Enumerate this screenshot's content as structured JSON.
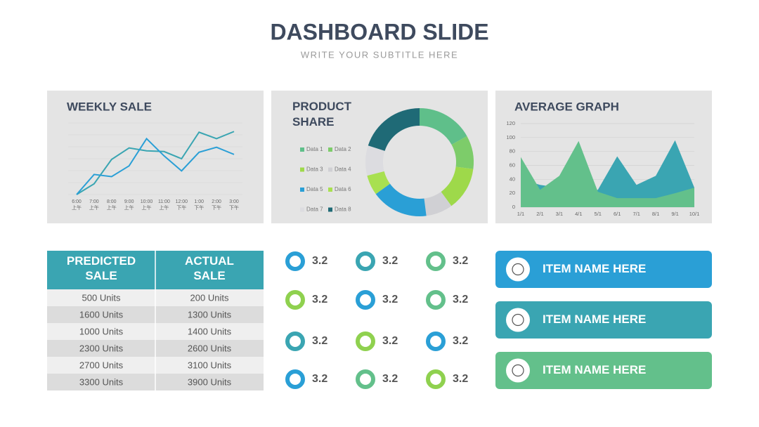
{
  "title": "DASHBOARD SLIDE",
  "subtitle": "WRITE YOUR SUBTITLE HERE",
  "chart_data": [
    {
      "type": "line",
      "title": "WEEKLY SALE",
      "categories": [
        "6:00 上午",
        "7:00 上午",
        "8:00 上午",
        "9:00 上午",
        "10:00 上午",
        "11:00 上午",
        "12:00 下午",
        "1:00 下午",
        "2:00 下午",
        "3:00 下午"
      ],
      "ylim": [
        0,
        100
      ],
      "series": [
        {
          "color": "#3aa5b2",
          "values": [
            0,
            15,
            49,
            65,
            61,
            60,
            50,
            87,
            78,
            88
          ]
        },
        {
          "color": "#2a9fd6",
          "values": [
            0,
            28,
            25,
            40,
            78,
            54,
            33,
            59,
            66,
            56
          ]
        }
      ]
    },
    {
      "type": "pie",
      "title": "PRODUCT SHARE",
      "donut": true,
      "categories": [
        "Data 1",
        "Data 2",
        "Data 3",
        "Data 4",
        "Data 5",
        "Data 6",
        "Data 7",
        "Data 8"
      ],
      "values": [
        17,
        10,
        13,
        8,
        17,
        6,
        9,
        20
      ],
      "colors": [
        "#5fbf8a",
        "#7dcc6a",
        "#9ed94a",
        "#d0d0d4",
        "#2a9fd6",
        "#a8e050",
        "#dcdce0",
        "#1f6a76"
      ]
    },
    {
      "type": "area",
      "title": "AVERAGE GRAPH",
      "categories": [
        "1/1",
        "2/1",
        "3/1",
        "4/1",
        "5/1",
        "6/1",
        "7/1",
        "8/1",
        "9/1",
        "10/1"
      ],
      "ylim": [
        0,
        120
      ],
      "yticks": [
        0,
        20,
        40,
        60,
        80,
        100,
        120
      ],
      "grid": true,
      "series": [
        {
          "color": "#3aa5b2",
          "values": [
            40,
            32,
            28,
            20,
            25,
            73,
            32,
            45,
            96,
            28
          ]
        },
        {
          "color": "#63c08b",
          "values": [
            72,
            25,
            45,
            95,
            22,
            13,
            13,
            13,
            20,
            28
          ]
        }
      ]
    }
  ],
  "table": {
    "header": [
      "PREDICTED SALE",
      "ACTUAL SALE"
    ],
    "rows": [
      [
        "500 Units",
        "200 Units"
      ],
      [
        "1600 Units",
        "1300 Units"
      ],
      [
        "1000 Units",
        "1400 Units"
      ],
      [
        "2300 Units",
        "2600 Units"
      ],
      [
        "2700 Units",
        "3100 Units"
      ],
      [
        "3300 Units",
        "3900 Units"
      ]
    ]
  },
  "rings": [
    {
      "label": "3.2",
      "color": "#2a9fd6"
    },
    {
      "label": "3.2",
      "color": "#3aa5b2"
    },
    {
      "label": "3.2",
      "color": "#63c08b"
    },
    {
      "label": "3.2",
      "color": "#8fd14f"
    },
    {
      "label": "3.2",
      "color": "#2a9fd6"
    },
    {
      "label": "3.2",
      "color": "#63c08b"
    },
    {
      "label": "3.2",
      "color": "#3aa5b2"
    },
    {
      "label": "3.2",
      "color": "#8fd14f"
    },
    {
      "label": "3.2",
      "color": "#2a9fd6"
    },
    {
      "label": "3.2",
      "color": "#2a9fd6"
    },
    {
      "label": "3.2",
      "color": "#63c08b"
    },
    {
      "label": "3.2",
      "color": "#8fd14f"
    }
  ],
  "items": [
    {
      "label": "ITEM NAME HERE",
      "color": "#2a9fd6"
    },
    {
      "label": "ITEM NAME HERE",
      "color": "#3aa5b2"
    },
    {
      "label": "ITEM NAME HERE",
      "color": "#63c08b"
    }
  ]
}
